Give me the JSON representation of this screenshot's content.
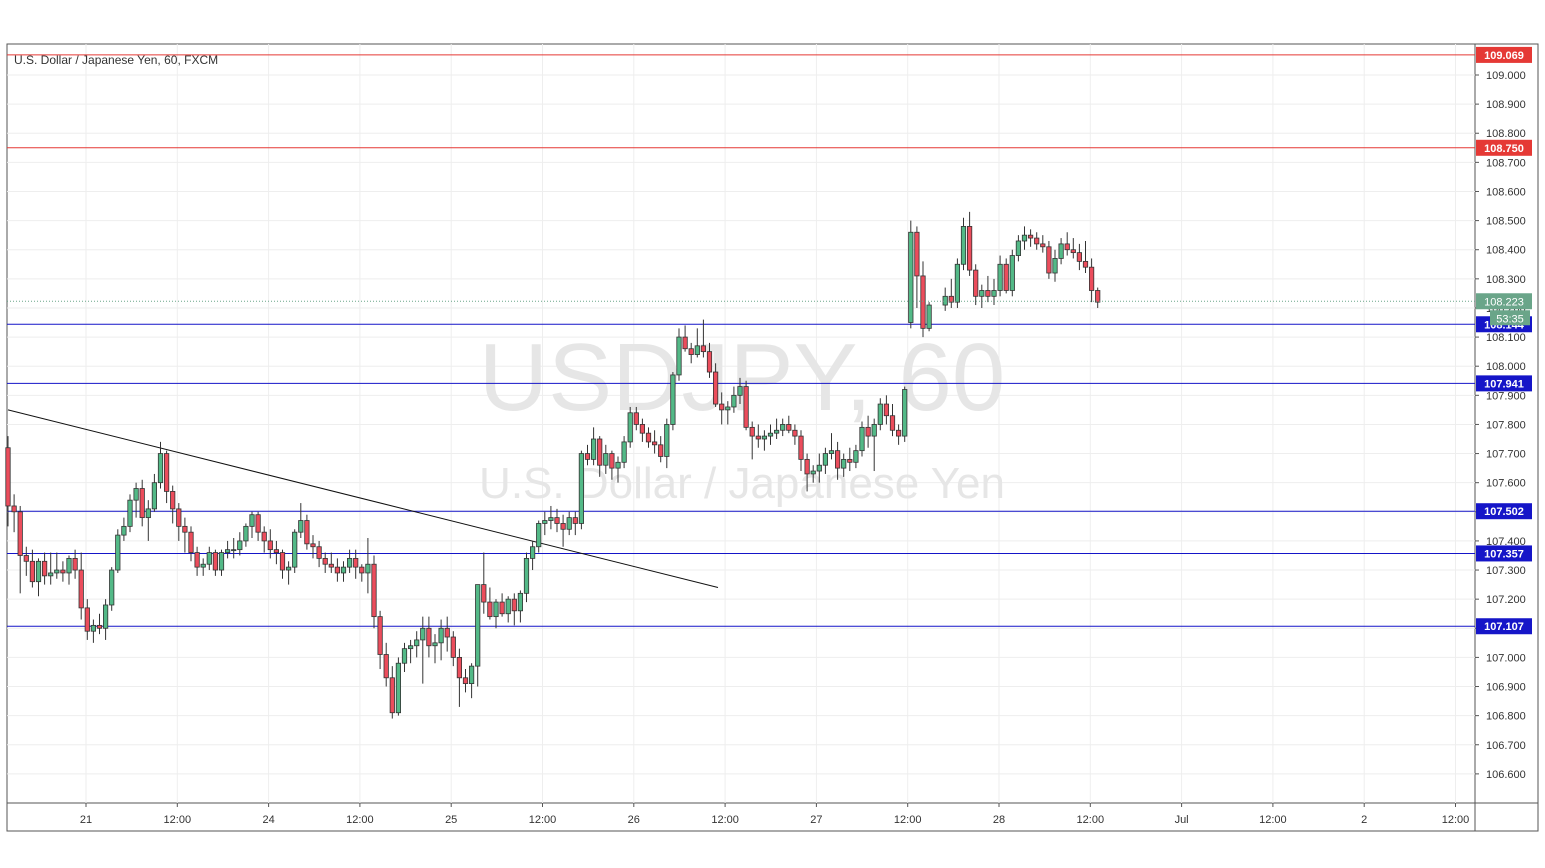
{
  "chart_data": {
    "type": "candlestick",
    "title": "U.S. Dollar / Japanese Yen, 60, FXCM",
    "symbol": "USDJPY",
    "interval": "60",
    "watermark_symbol": "USDJPY, 60",
    "watermark_description": "U.S. Dollar / Japanese Yen",
    "x_tick_labels": [
      "21",
      "12:00",
      "24",
      "12:00",
      "25",
      "12:00",
      "26",
      "12:00",
      "27",
      "12:00",
      "28",
      "12:00",
      "Jul",
      "12:00",
      "2",
      "12:00"
    ],
    "y_tick_labels": [
      "109.000",
      "108.900",
      "108.800",
      "108.700",
      "108.600",
      "108.500",
      "108.400",
      "108.300",
      "108.200",
      "108.100",
      "108.000",
      "107.900",
      "107.800",
      "107.700",
      "107.600",
      "107.500",
      "107.400",
      "107.300",
      "107.200",
      "107.100",
      "107.000",
      "106.900",
      "106.800",
      "106.700",
      "106.600"
    ],
    "ylim": [
      106.52,
      109.13
    ],
    "grid": true,
    "resistance_levels": [
      {
        "value": 109.069,
        "label": "109.069",
        "color": "#e53935"
      },
      {
        "value": 108.75,
        "label": "108.750",
        "color": "#e53935"
      }
    ],
    "support_levels": [
      {
        "value": 108.144,
        "label": "108.144",
        "color": "#1515c8"
      },
      {
        "value": 107.941,
        "label": "107.941",
        "color": "#1515c8"
      },
      {
        "value": 107.502,
        "label": "107.502",
        "color": "#1515c8"
      },
      {
        "value": 107.357,
        "label": "107.357",
        "color": "#1515c8"
      },
      {
        "value": 107.107,
        "label": "107.107",
        "color": "#1515c8"
      }
    ],
    "last_price": {
      "value": 108.223,
      "label": "108.223",
      "countdown": "53:35",
      "color": "#6aa589"
    },
    "trendline": {
      "start": {
        "bar": 0,
        "price": 107.85
      },
      "end": {
        "bar": 90,
        "price": 107.24
      }
    },
    "candles": [
      [
        107.72,
        107.76,
        107.45,
        107.52
      ],
      [
        107.52,
        107.56,
        107.43,
        107.5
      ],
      [
        107.5,
        107.52,
        107.22,
        107.35
      ],
      [
        107.35,
        107.38,
        107.28,
        107.33
      ],
      [
        107.33,
        107.37,
        107.24,
        107.26
      ],
      [
        107.26,
        107.34,
        107.21,
        107.33
      ],
      [
        107.33,
        107.36,
        107.25,
        107.28
      ],
      [
        107.28,
        107.36,
        107.25,
        107.29
      ],
      [
        107.29,
        107.36,
        107.27,
        107.3
      ],
      [
        107.3,
        107.33,
        107.26,
        107.29
      ],
      [
        107.29,
        107.35,
        107.25,
        107.34
      ],
      [
        107.34,
        107.37,
        107.27,
        107.3
      ],
      [
        107.3,
        107.36,
        107.13,
        107.17
      ],
      [
        107.17,
        107.2,
        107.06,
        107.09
      ],
      [
        107.09,
        107.13,
        107.05,
        107.11
      ],
      [
        107.11,
        107.15,
        107.08,
        107.1
      ],
      [
        107.1,
        107.2,
        107.06,
        107.18
      ],
      [
        107.18,
        107.31,
        107.16,
        107.3
      ],
      [
        107.3,
        107.44,
        107.29,
        107.42
      ],
      [
        107.42,
        107.48,
        107.4,
        107.45
      ],
      [
        107.45,
        107.56,
        107.43,
        107.54
      ],
      [
        107.54,
        107.6,
        107.48,
        107.58
      ],
      [
        107.58,
        107.61,
        107.45,
        107.48
      ],
      [
        107.48,
        107.54,
        107.4,
        107.51
      ],
      [
        107.51,
        107.63,
        107.5,
        107.6
      ],
      [
        107.6,
        107.74,
        107.58,
        107.7
      ],
      [
        107.7,
        107.71,
        107.53,
        107.57
      ],
      [
        107.57,
        107.59,
        107.46,
        107.51
      ],
      [
        107.51,
        107.53,
        107.4,
        107.45
      ],
      [
        107.45,
        107.48,
        107.36,
        107.43
      ],
      [
        107.43,
        107.45,
        107.33,
        107.36
      ],
      [
        107.36,
        107.38,
        107.28,
        107.31
      ],
      [
        107.31,
        107.34,
        107.28,
        107.32
      ],
      [
        107.32,
        107.38,
        107.3,
        107.36
      ],
      [
        107.36,
        107.37,
        107.28,
        107.3
      ],
      [
        107.3,
        107.37,
        107.28,
        107.36
      ],
      [
        107.36,
        107.4,
        107.34,
        107.37
      ],
      [
        107.37,
        107.41,
        107.34,
        107.37
      ],
      [
        107.37,
        107.43,
        107.35,
        107.4
      ],
      [
        107.4,
        107.46,
        107.38,
        107.45
      ],
      [
        107.45,
        107.5,
        107.41,
        107.49
      ],
      [
        107.49,
        107.5,
        107.4,
        107.43
      ],
      [
        107.43,
        107.45,
        107.36,
        107.4
      ],
      [
        107.4,
        107.44,
        107.34,
        107.37
      ],
      [
        107.37,
        107.4,
        107.32,
        107.36
      ],
      [
        107.36,
        107.37,
        107.27,
        107.3
      ],
      [
        107.3,
        107.33,
        107.25,
        107.31
      ],
      [
        107.31,
        107.44,
        107.29,
        107.43
      ],
      [
        107.43,
        107.53,
        107.41,
        107.47
      ],
      [
        107.47,
        107.49,
        107.37,
        107.39
      ],
      [
        107.39,
        107.42,
        107.34,
        107.38
      ],
      [
        107.38,
        107.4,
        107.31,
        107.34
      ],
      [
        107.34,
        107.36,
        107.29,
        107.32
      ],
      [
        107.32,
        107.36,
        107.29,
        107.31
      ],
      [
        107.31,
        107.34,
        107.26,
        107.29
      ],
      [
        107.29,
        107.33,
        107.26,
        107.31
      ],
      [
        107.31,
        107.37,
        107.29,
        107.34
      ],
      [
        107.34,
        107.37,
        107.27,
        107.31
      ],
      [
        107.31,
        107.32,
        107.26,
        107.29
      ],
      [
        107.29,
        107.41,
        107.22,
        107.32
      ],
      [
        107.32,
        107.35,
        107.1,
        107.14
      ],
      [
        107.14,
        107.16,
        106.96,
        107.01
      ],
      [
        107.01,
        107.05,
        106.9,
        106.93
      ],
      [
        106.93,
        106.97,
        106.79,
        106.81
      ],
      [
        106.81,
        107.0,
        106.8,
        106.98
      ],
      [
        106.98,
        107.05,
        106.95,
        107.03
      ],
      [
        107.03,
        107.06,
        106.98,
        107.04
      ],
      [
        107.04,
        107.09,
        107.0,
        107.06
      ],
      [
        107.06,
        107.14,
        106.91,
        107.1
      ],
      [
        107.1,
        107.14,
        107.0,
        107.04
      ],
      [
        107.04,
        107.08,
        106.98,
        107.05
      ],
      [
        107.05,
        107.13,
        106.99,
        107.1
      ],
      [
        107.1,
        107.14,
        107.02,
        107.07
      ],
      [
        107.07,
        107.09,
        106.97,
        107.0
      ],
      [
        107.0,
        107.03,
        106.83,
        106.93
      ],
      [
        106.93,
        106.96,
        106.88,
        106.91
      ],
      [
        106.91,
        106.98,
        106.86,
        106.97
      ],
      [
        106.97,
        107.25,
        106.9,
        107.25
      ],
      [
        107.25,
        107.36,
        107.15,
        107.19
      ],
      [
        107.19,
        107.24,
        107.13,
        107.14
      ],
      [
        107.14,
        107.2,
        107.1,
        107.19
      ],
      [
        107.19,
        107.22,
        107.14,
        107.15
      ],
      [
        107.15,
        107.21,
        107.12,
        107.2
      ],
      [
        107.2,
        107.22,
        107.11,
        107.16
      ],
      [
        107.16,
        107.23,
        107.12,
        107.22
      ],
      [
        107.22,
        107.36,
        107.19,
        107.34
      ],
      [
        107.34,
        107.4,
        107.3,
        107.38
      ],
      [
        107.38,
        107.47,
        107.36,
        107.46
      ],
      [
        107.46,
        107.5,
        107.42,
        107.47
      ],
      [
        107.47,
        107.52,
        107.44,
        107.48
      ],
      [
        107.48,
        107.51,
        107.43,
        107.46
      ],
      [
        107.46,
        107.49,
        107.38,
        107.44
      ],
      [
        107.44,
        107.5,
        107.42,
        107.48
      ],
      [
        107.48,
        107.5,
        107.42,
        107.46
      ],
      [
        107.46,
        107.71,
        107.44,
        107.7
      ],
      [
        107.7,
        107.73,
        107.66,
        107.68
      ],
      [
        107.68,
        107.79,
        107.66,
        107.75
      ],
      [
        107.75,
        107.76,
        107.62,
        107.66
      ],
      [
        107.66,
        107.73,
        107.63,
        107.7
      ],
      [
        107.7,
        107.71,
        107.61,
        107.65
      ],
      [
        107.65,
        107.69,
        107.6,
        107.67
      ],
      [
        107.67,
        107.76,
        107.65,
        107.74
      ],
      [
        107.74,
        107.86,
        107.72,
        107.84
      ],
      [
        107.84,
        107.86,
        107.78,
        107.8
      ],
      [
        107.8,
        107.82,
        107.74,
        107.77
      ],
      [
        107.77,
        107.79,
        107.72,
        107.74
      ],
      [
        107.74,
        107.78,
        107.7,
        107.73
      ],
      [
        107.73,
        107.76,
        107.67,
        107.69
      ],
      [
        107.69,
        107.82,
        107.65,
        107.8
      ],
      [
        107.8,
        107.98,
        107.78,
        107.97
      ],
      [
        107.97,
        108.13,
        107.95,
        108.1
      ],
      [
        108.1,
        108.14,
        108.05,
        108.06
      ],
      [
        108.06,
        108.08,
        108.01,
        108.04
      ],
      [
        108.04,
        108.13,
        108.03,
        108.07
      ],
      [
        108.07,
        108.16,
        108.03,
        108.05
      ],
      [
        108.05,
        108.08,
        107.96,
        107.98
      ],
      [
        107.98,
        108.01,
        107.86,
        107.87
      ],
      [
        107.87,
        107.91,
        107.8,
        107.85
      ],
      [
        107.85,
        107.88,
        107.8,
        107.86
      ],
      [
        107.86,
        107.93,
        107.84,
        107.9
      ],
      [
        107.9,
        107.96,
        107.87,
        107.93
      ],
      [
        107.93,
        107.95,
        107.78,
        107.79
      ],
      [
        107.79,
        107.81,
        107.68,
        107.76
      ],
      [
        107.76,
        107.8,
        107.72,
        107.75
      ],
      [
        107.75,
        107.78,
        107.71,
        107.76
      ],
      [
        107.76,
        107.8,
        107.73,
        107.77
      ],
      [
        107.77,
        107.82,
        107.75,
        107.78
      ],
      [
        107.78,
        107.82,
        107.76,
        107.8
      ],
      [
        107.8,
        107.83,
        107.77,
        107.78
      ],
      [
        107.78,
        107.8,
        107.73,
        107.76
      ],
      [
        107.76,
        107.78,
        107.64,
        107.68
      ],
      [
        107.68,
        107.7,
        107.57,
        107.63
      ],
      [
        107.63,
        107.66,
        107.6,
        107.64
      ],
      [
        107.64,
        107.7,
        107.6,
        107.66
      ],
      [
        107.66,
        107.72,
        107.63,
        107.7
      ],
      [
        107.7,
        107.77,
        107.68,
        107.71
      ],
      [
        107.71,
        107.74,
        107.61,
        107.65
      ],
      [
        107.65,
        107.7,
        107.62,
        107.68
      ],
      [
        107.68,
        107.72,
        107.64,
        107.67
      ],
      [
        107.67,
        107.73,
        107.65,
        107.71
      ],
      [
        107.71,
        107.81,
        107.69,
        107.79
      ],
      [
        107.79,
        107.83,
        107.72,
        107.76
      ],
      [
        107.76,
        107.82,
        107.64,
        107.8
      ],
      [
        107.8,
        107.89,
        107.78,
        107.87
      ],
      [
        107.87,
        107.9,
        107.8,
        107.83
      ],
      [
        107.83,
        107.87,
        107.76,
        107.78
      ],
      [
        107.78,
        107.8,
        107.73,
        107.76
      ],
      [
        107.76,
        107.93,
        107.74,
        107.92
      ],
      [
        108.15,
        108.5,
        108.13,
        108.46
      ],
      [
        108.46,
        108.48,
        108.2,
        108.31
      ],
      [
        108.31,
        108.36,
        108.1,
        108.13
      ],
      [
        108.13,
        108.22,
        108.12,
        108.21
      ],
      [
        108.21,
        108.27,
        108.19,
        108.24
      ],
      [
        108.24,
        108.3,
        108.2,
        108.22
      ],
      [
        108.22,
        108.37,
        108.2,
        108.35
      ],
      [
        108.35,
        108.51,
        108.33,
        108.48
      ],
      [
        108.48,
        108.53,
        108.31,
        108.33
      ],
      [
        108.33,
        108.35,
        108.21,
        108.24
      ],
      [
        108.24,
        108.28,
        108.2,
        108.26
      ],
      [
        108.26,
        108.31,
        108.22,
        108.24
      ],
      [
        108.24,
        108.3,
        108.21,
        108.26
      ],
      [
        108.26,
        108.38,
        108.24,
        108.35
      ],
      [
        108.35,
        108.37,
        108.25,
        108.26
      ],
      [
        108.26,
        108.4,
        108.24,
        108.38
      ],
      [
        108.38,
        108.45,
        108.36,
        108.43
      ],
      [
        108.43,
        108.48,
        108.4,
        108.45
      ],
      [
        108.45,
        108.47,
        108.41,
        108.44
      ],
      [
        108.44,
        108.46,
        108.4,
        108.42
      ],
      [
        108.42,
        108.45,
        108.39,
        108.41
      ],
      [
        108.41,
        108.43,
        108.3,
        108.32
      ],
      [
        108.32,
        108.4,
        108.29,
        108.37
      ],
      [
        108.37,
        108.44,
        108.35,
        108.42
      ],
      [
        108.42,
        108.46,
        108.38,
        108.4
      ],
      [
        108.4,
        108.44,
        108.37,
        108.39
      ],
      [
        108.39,
        108.42,
        108.33,
        108.36
      ],
      [
        108.36,
        108.43,
        108.32,
        108.34
      ],
      [
        108.34,
        108.37,
        108.22,
        108.26
      ],
      [
        108.26,
        108.27,
        108.2,
        108.22
      ]
    ],
    "price_axis_labels_shown": true
  }
}
